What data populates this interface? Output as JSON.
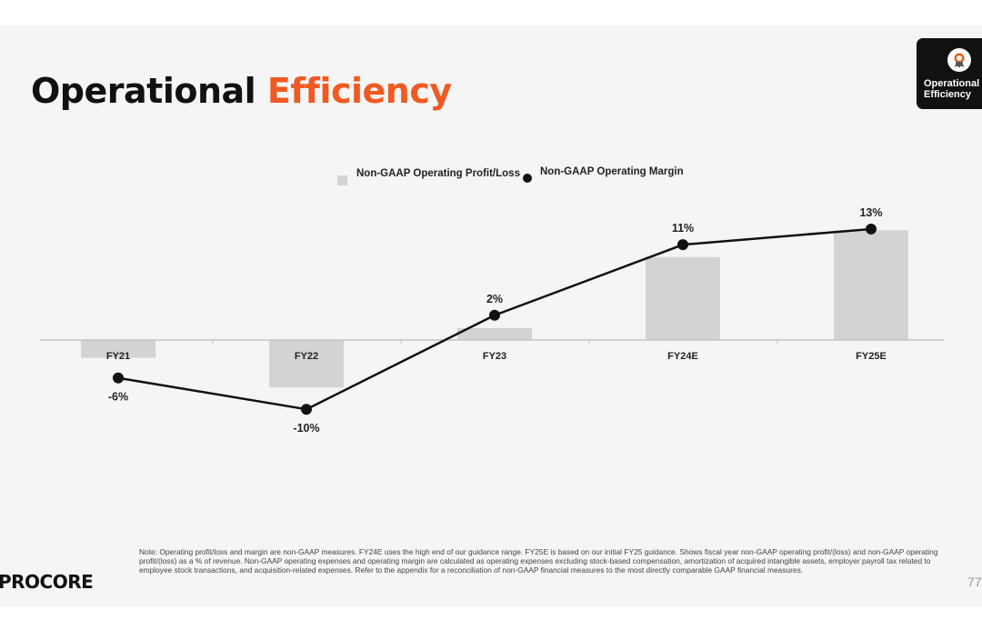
{
  "slide": {
    "title_main": "Operational",
    "title_accent": "Efficiency",
    "badge_lines": [
      "Operational",
      "Efficiency"
    ],
    "note": "Note: Operating profit/loss and margin are non-GAAP measures. FY24E uses the high end of our guidance range. FY25E is based on our initial FY25 guidance. Shows fiscal year non-GAAP operating profit/(loss) and non-GAAP operating profit/(loss) as a % of revenue. Non-GAAP operating expenses and operating margin are calculated as operating expenses excluding stock-based compensation, amortization of acquired intangible assets, employer payroll tax related to employee stock transactions, and acquisition-related expenses. Refer to the appendix for a reconciliation of non-GAAP financial measures to the most directly comparable GAAP financial measures.",
    "logo": "PROCORE",
    "page_number": "77"
  },
  "colors": {
    "accent": "#f05a22",
    "bar": "#d4d2d2",
    "line": "#111111",
    "background": "#f5f5f5"
  },
  "chart_data": {
    "type": "bar",
    "categories": [
      "FY21",
      "FY22",
      "FY23",
      "FY24E",
      "FY25E"
    ],
    "series": [
      {
        "name": "Non-GAAP Operating Profit/Loss",
        "kind": "bar",
        "values": [
          -6,
          -16,
          4,
          28,
          37
        ]
      },
      {
        "name": "Non-GAAP Operating Margin",
        "kind": "line",
        "values": [
          -6,
          -10,
          2,
          11,
          13
        ],
        "labels": [
          "-6%",
          "-10%",
          "2%",
          "11%",
          "13%"
        ]
      }
    ],
    "legend": "top-center",
    "grid": false
  }
}
